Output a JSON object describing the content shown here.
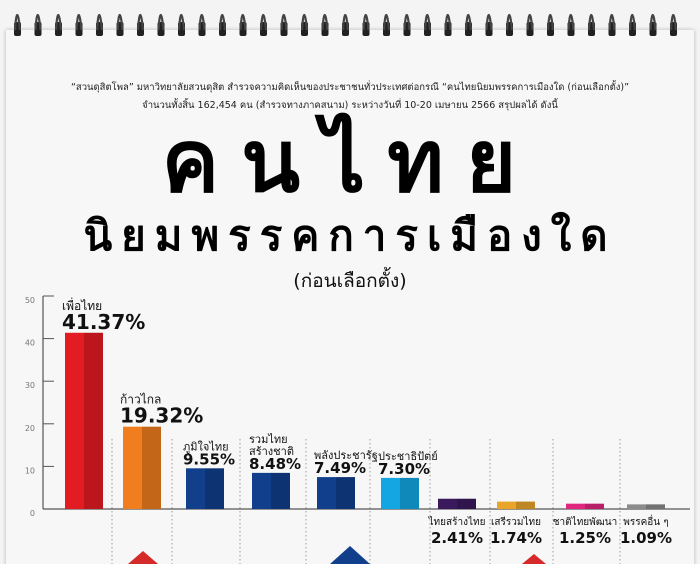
{
  "header": {
    "line1": "“สวนดุสิตโพล” มหาวิทยาลัยสวนดุสิต สำรวจความคิดเห็นของประชาชนทั่วประเทศต่อกรณี “คนไทยนิยมพรรคการเมืองใด (ก่อนเลือกตั้ง)”",
    "line2": "จำนวนทั้งสิ้น 162,454 คน (สำรวจทางภาคสนาม) ระหว่างวันที่ 10-20 เมษายน 2566 สรุปผลได้ ดังนี้",
    "title1": "คนไทย",
    "title2": "นิยมพรรคการเมืองใด",
    "title3": "(ก่อนเลือกตั้ง)"
  },
  "chart_data": {
    "type": "bar",
    "categories": [
      "เพื่อไทย",
      "ก้าวไกล",
      "ภูมิใจไทย",
      "รวมไทยสร้างชาติ",
      "พลังประชารัฐ",
      "ประชาธิปัตย์",
      "ไทยสร้างไทย",
      "เสรีรวมไทย",
      "ชาติไทยพัฒนา",
      "พรรคอื่น ๆ"
    ],
    "labels": [
      "เพื่อไทย",
      "ก้าวไกล",
      "ภูมิใจไทย",
      "รวมไทย\nสร้างชาติ",
      "พลังประชารัฐ",
      "ประชาธิปัตย์",
      "ไทยสร้างไทย",
      "เสรีรวมไทย",
      "ชาติไทยพัฒนา",
      "พรรคอื่น ๆ"
    ],
    "values": [
      41.37,
      19.32,
      9.55,
      8.48,
      7.49,
      7.3,
      2.41,
      1.74,
      1.25,
      1.09
    ],
    "value_labels": [
      "41.37%",
      "19.32%",
      "9.55%",
      "8.48%",
      "7.49%",
      "7.30%",
      "2.41%",
      "1.74%",
      "1.25%",
      "1.09%"
    ],
    "colors": [
      "#e31b23",
      "#f07d1e",
      "#123f8c",
      "#123f8c",
      "#123f8c",
      "#13a6e3",
      "#3a1a5c",
      "#e8a52a",
      "#e0267f",
      "#8c8c8c"
    ],
    "yticks": [
      "0",
      "10",
      "20",
      "30",
      "40",
      "50"
    ],
    "ylim": [
      0,
      50
    ],
    "grid": false
  }
}
